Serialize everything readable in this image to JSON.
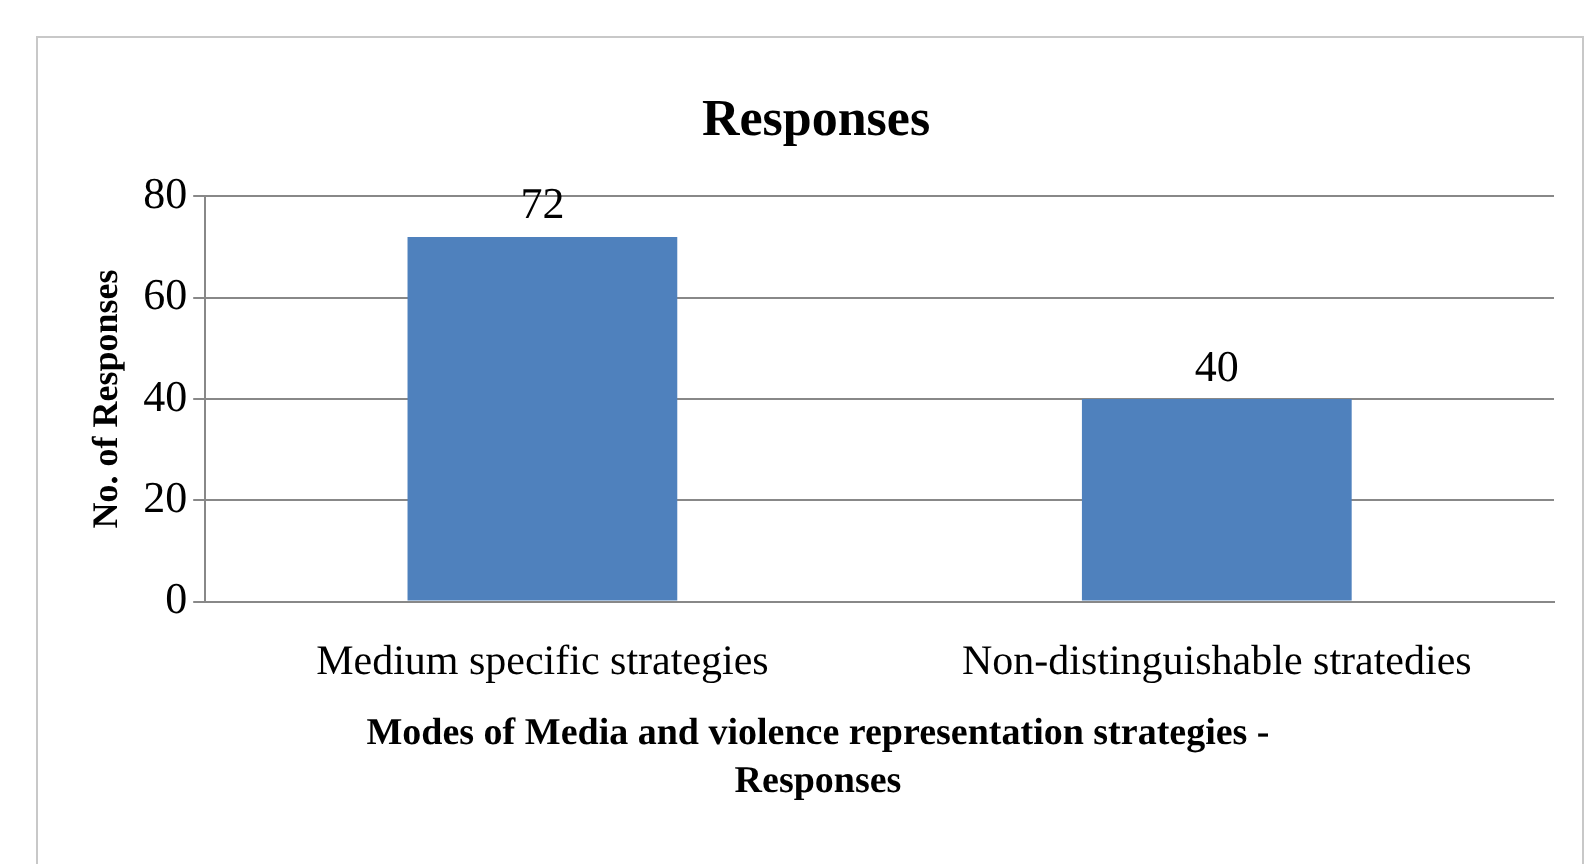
{
  "chart_data": {
    "type": "bar",
    "title": "Responses",
    "xlabel": "Modes of Media and violence representation strategies - Responses",
    "ylabel": "No. of Responses",
    "categories": [
      "Medium specific strategies",
      "Non-distinguishable stratedies"
    ],
    "values": [
      72,
      40
    ],
    "color": "#4f81bd",
    "ylim": [
      0,
      80
    ],
    "yticks": [
      0,
      20,
      40,
      60,
      80
    ],
    "grid": "y",
    "data_labels": true,
    "legend": false
  }
}
